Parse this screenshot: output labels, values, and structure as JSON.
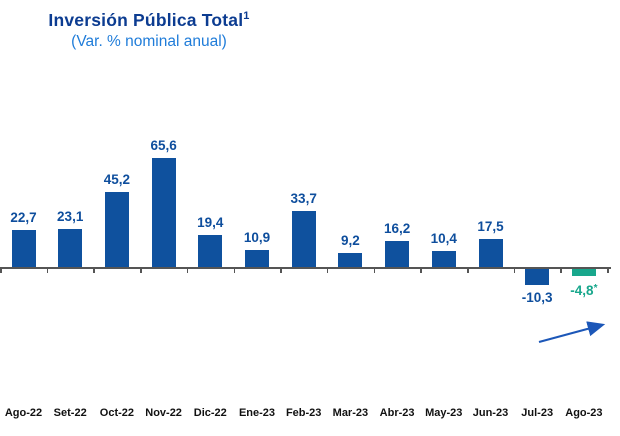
{
  "header": {
    "title": "Inversión Pública Total",
    "title_superscript": "1",
    "subtitle": "(Var. % nominal anual)"
  },
  "chart_data": {
    "type": "bar",
    "title": "Inversión Pública Total",
    "title_superscript": "1",
    "subtitle": "(Var. % nominal anual)",
    "categories": [
      "Ago-22",
      "Set-22",
      "Oct-22",
      "Nov-22",
      "Dic-22",
      "Ene-23",
      "Feb-23",
      "Mar-23",
      "Abr-23",
      "May-23",
      "Jun-23",
      "Jul-23",
      "Ago-23"
    ],
    "values": [
      22.7,
      23.1,
      45.2,
      65.6,
      19.4,
      10.9,
      33.7,
      9.2,
      16.2,
      10.4,
      17.5,
      -10.3,
      -4.8
    ],
    "value_labels": [
      "22,7",
      "23,1",
      "45,2",
      "65,6",
      "19,4",
      "10,9",
      "33,7",
      "9,2",
      "16,2",
      "10,4",
      "17,5",
      "-10,3",
      "-4,8*"
    ],
    "highlight_index": 12,
    "xlabel": "",
    "ylabel": "",
    "ylim": [
      -15,
      70
    ],
    "grid": false,
    "legend": false,
    "annotations": [
      "arrow pointing up-right near last bar"
    ],
    "colors": {
      "bar": "#0F519E",
      "highlight_bar": "#18A78C",
      "value_label": "#0E4E9D",
      "highlight_label": "#18A78C",
      "axis": "#555555",
      "category_label": "#111111",
      "arrow": "#1C57B8",
      "title": "#0C3C91",
      "subtitle": "#1F7CD9"
    }
  }
}
